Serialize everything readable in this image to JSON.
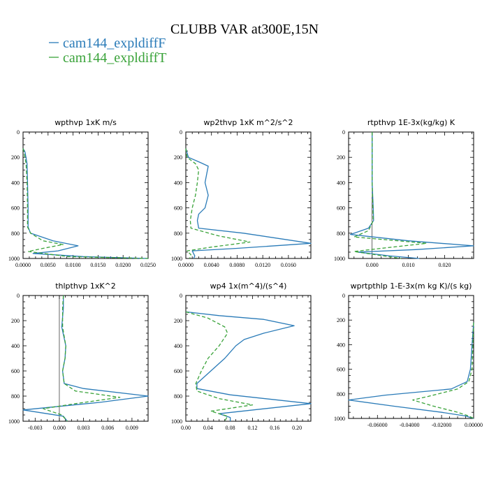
{
  "title": "CLUBB VAR at300E,15N",
  "series_styles": [
    {
      "name": "cam144_expldiffF",
      "color": "#2a7bb8",
      "dash": ""
    },
    {
      "name": "cam144_expldiffT",
      "color": "#3aa33a",
      "dash": "5,3"
    }
  ],
  "chart_data": [
    {
      "type": "line",
      "title": "wpthvp  1xK m/s",
      "xlim": [
        0,
        0.025
      ],
      "ylim": [
        1000,
        0
      ],
      "x_ticks": [
        "0.0000",
        "0.0050",
        "0.0100",
        "0.0150",
        "0.0200",
        "0.0250"
      ],
      "x_tick_values": [
        0,
        0.005,
        0.01,
        0.015,
        0.02,
        0.025
      ],
      "y_ticks": [
        "0",
        "200",
        "400",
        "600",
        "800",
        "1000"
      ],
      "y_tick_values": [
        0,
        200,
        400,
        600,
        800,
        1000
      ],
      "series": [
        {
          "name": "cam144_expldiffF",
          "points": [
            [
              0,
              130
            ],
            [
              0.0004,
              160
            ],
            [
              0.0008,
              250
            ],
            [
              0.0009,
              400
            ],
            [
              0.001,
              600
            ],
            [
              0.001,
              750
            ],
            [
              0.0015,
              800
            ],
            [
              0.006,
              860
            ],
            [
              0.011,
              900
            ],
            [
              0.007,
              940
            ],
            [
              0.002,
              960
            ],
            [
              0.012,
              985
            ],
            [
              0.025,
              1000
            ]
          ]
        },
        {
          "name": "cam144_expldiffT",
          "points": [
            [
              0,
              130
            ],
            [
              0.0002,
              160
            ],
            [
              0.0006,
              250
            ],
            [
              0.0008,
              400
            ],
            [
              0.0009,
              600
            ],
            [
              0.0009,
              750
            ],
            [
              0.0015,
              800
            ],
            [
              0.004,
              860
            ],
            [
              0.008,
              890
            ],
            [
              0.004,
              920
            ],
            [
              0.001,
              945
            ],
            [
              0.009,
              985
            ],
            [
              0.025,
              1000
            ]
          ]
        }
      ]
    },
    {
      "type": "line",
      "title": "wp2thvp  1xK m^2/s^2",
      "xlim": [
        0,
        0.0195
      ],
      "ylim": [
        1000,
        0
      ],
      "x_ticks": [
        "0.0000",
        "0.0040",
        "0.0080",
        "0.0120",
        "0.0160"
      ],
      "x_tick_values": [
        0,
        0.004,
        0.008,
        0.012,
        0.016
      ],
      "y_ticks": [
        "0",
        "200",
        "400",
        "600",
        "800",
        "1000"
      ],
      "y_tick_values": [
        0,
        200,
        400,
        600,
        800,
        1000
      ],
      "series": [
        {
          "name": "cam144_expldiffF",
          "points": [
            [
              0,
              130
            ],
            [
              0.0004,
              200
            ],
            [
              0.0022,
              240
            ],
            [
              0.0035,
              270
            ],
            [
              0.0033,
              320
            ],
            [
              0.003,
              400
            ],
            [
              0.0035,
              500
            ],
            [
              0.003,
              600
            ],
            [
              0.002,
              650
            ],
            [
              0.0018,
              700
            ],
            [
              0.002,
              760
            ],
            [
              0.009,
              800
            ],
            [
              0.0195,
              880
            ],
            [
              0.008,
              920
            ],
            [
              0.001,
              940
            ],
            [
              0.0014,
              980
            ],
            [
              0.0012,
              1000
            ]
          ]
        },
        {
          "name": "cam144_expldiffT",
          "points": [
            [
              0,
              130
            ],
            [
              0.0002,
              200
            ],
            [
              0.0015,
              250
            ],
            [
              0.002,
              300
            ],
            [
              0.0018,
              400
            ],
            [
              0.0015,
              500
            ],
            [
              0.001,
              600
            ],
            [
              0.0007,
              700
            ],
            [
              0.0008,
              760
            ],
            [
              0.005,
              820
            ],
            [
              0.01,
              870
            ],
            [
              0.004,
              910
            ],
            [
              0.0002,
              940
            ],
            [
              0.0008,
              970
            ],
            [
              0.0006,
              1000
            ]
          ]
        }
      ]
    },
    {
      "type": "line",
      "title": "rtpthvp  1E-3x(kg/kg) K",
      "xlim": [
        -0.0065,
        0.028
      ],
      "ylim": [
        1000,
        0
      ],
      "x_ticks": [
        "0.000",
        "0.010",
        "0.020"
      ],
      "x_tick_values": [
        0,
        0.01,
        0.02
      ],
      "y_ticks": [
        "0",
        "200",
        "400",
        "600",
        "800",
        "1000"
      ],
      "y_tick_values": [
        0,
        200,
        400,
        600,
        800,
        1000
      ],
      "series": [
        {
          "name": "cam144_expldiffF",
          "points": [
            [
              0,
              0
            ],
            [
              0,
              400
            ],
            [
              0.0003,
              600
            ],
            [
              0.0004,
              700
            ],
            [
              -0.001,
              760
            ],
            [
              -0.006,
              810
            ],
            [
              0.01,
              860
            ],
            [
              0.028,
              900
            ],
            [
              0.012,
              930
            ],
            [
              -0.004,
              950
            ],
            [
              0.005,
              980
            ],
            [
              0.013,
              1000
            ]
          ]
        },
        {
          "name": "cam144_expldiffT",
          "points": [
            [
              0,
              0
            ],
            [
              0,
              400
            ],
            [
              0.0002,
              600
            ],
            [
              0.0003,
              700
            ],
            [
              -0.001,
              780
            ],
            [
              -0.005,
              830
            ],
            [
              0.015,
              880
            ],
            [
              0.001,
              925
            ],
            [
              -0.005,
              945
            ],
            [
              0.002,
              975
            ],
            [
              0.008,
              1000
            ]
          ]
        }
      ]
    },
    {
      "type": "line",
      "title": "thlpthvp  1xK^2",
      "xlim": [
        -0.0045,
        0.011
      ],
      "ylim": [
        1000,
        0
      ],
      "x_ticks": [
        "-0.003",
        "0.000",
        "0.003",
        "0.006",
        "0.009"
      ],
      "x_tick_values": [
        -0.003,
        0,
        0.003,
        0.006,
        0.009
      ],
      "y_ticks": [
        "0",
        "200",
        "400",
        "600",
        "800",
        "1000"
      ],
      "y_tick_values": [
        0,
        200,
        400,
        600,
        800,
        1000
      ],
      "series": [
        {
          "name": "cam144_expldiffF",
          "points": [
            [
              0.0005,
              0
            ],
            [
              0.0005,
              100
            ],
            [
              0.0003,
              250
            ],
            [
              0.0008,
              400
            ],
            [
              0.0007,
              500
            ],
            [
              0.0004,
              600
            ],
            [
              0.0006,
              700
            ],
            [
              0.003,
              740
            ],
            [
              0.011,
              800
            ],
            [
              0.005,
              850
            ],
            [
              -0.0045,
              910
            ],
            [
              0.0005,
              960
            ],
            [
              0.001,
              1000
            ]
          ]
        },
        {
          "name": "cam144_expldiffT",
          "points": [
            [
              0.0005,
              0
            ],
            [
              0.0004,
              100
            ],
            [
              0.0004,
              250
            ],
            [
              0.0008,
              400
            ],
            [
              0.0007,
              500
            ],
            [
              0.0004,
              600
            ],
            [
              0.0006,
              700
            ],
            [
              0.002,
              760
            ],
            [
              0.0075,
              810
            ],
            [
              0.002,
              860
            ],
            [
              -0.002,
              900
            ],
            [
              0.0003,
              950
            ],
            [
              0.001,
              1000
            ]
          ]
        }
      ]
    },
    {
      "type": "line",
      "title": "wp4  1x(m^4)/(s^4)",
      "xlim": [
        0,
        0.225
      ],
      "ylim": [
        1000,
        0
      ],
      "x_ticks": [
        "0.00",
        "0.04",
        "0.08",
        "0.12",
        "0.16",
        "0.20"
      ],
      "x_tick_values": [
        0,
        0.04,
        0.08,
        0.12,
        0.16,
        0.2
      ],
      "y_ticks": [
        "0",
        "200",
        "400",
        "600",
        "800",
        "1000"
      ],
      "y_tick_values": [
        0,
        200,
        400,
        600,
        800,
        1000
      ],
      "series": [
        {
          "name": "cam144_expldiffF",
          "points": [
            [
              0.0,
              130
            ],
            [
              0.06,
              160
            ],
            [
              0.14,
              190
            ],
            [
              0.195,
              240
            ],
            [
              0.14,
              300
            ],
            [
              0.105,
              350
            ],
            [
              0.09,
              400
            ],
            [
              0.07,
              500
            ],
            [
              0.045,
              600
            ],
            [
              0.02,
              700
            ],
            [
              0.02,
              740
            ],
            [
              0.08,
              790
            ],
            [
              0.225,
              860
            ],
            [
              0.06,
              940
            ],
            [
              0.08,
              970
            ],
            [
              0.08,
              1000
            ]
          ]
        },
        {
          "name": "cam144_expldiffT",
          "points": [
            [
              0.0,
              130
            ],
            [
              0.04,
              180
            ],
            [
              0.07,
              250
            ],
            [
              0.075,
              300
            ],
            [
              0.06,
              400
            ],
            [
              0.04,
              500
            ],
            [
              0.028,
              600
            ],
            [
              0.018,
              700
            ],
            [
              0.02,
              760
            ],
            [
              0.06,
              820
            ],
            [
              0.12,
              870
            ],
            [
              0.045,
              920
            ],
            [
              0.075,
              960
            ],
            [
              0.07,
              1000
            ]
          ]
        }
      ]
    },
    {
      "type": "line",
      "title": "wprtpthlp  1-E-3x(m kg K)/(s kg)",
      "xlim": [
        -0.078,
        0.0
      ],
      "ylim": [
        1000,
        0
      ],
      "x_ticks": [
        "-0.06000",
        "-0.04000",
        "-0.02000",
        "0.00000"
      ],
      "x_tick_values": [
        -0.06,
        -0.04,
        -0.02,
        0
      ],
      "y_ticks": [
        "0",
        "200",
        "400",
        "600",
        "800",
        "1000"
      ],
      "y_tick_values": [
        0,
        200,
        400,
        600,
        800,
        1000
      ],
      "series": [
        {
          "name": "cam144_expldiffF",
          "points": [
            [
              0,
              220
            ],
            [
              -0.001,
              400
            ],
            [
              -0.002,
              600
            ],
            [
              -0.004,
              700
            ],
            [
              -0.014,
              760
            ],
            [
              -0.055,
              810
            ],
            [
              -0.078,
              850
            ],
            [
              -0.05,
              900
            ],
            [
              -0.02,
              950
            ],
            [
              -0.005,
              980
            ],
            [
              0,
              1000
            ]
          ]
        },
        {
          "name": "cam144_expldiffT",
          "points": [
            [
              0,
              220
            ],
            [
              -0.0005,
              400
            ],
            [
              -0.001,
              600
            ],
            [
              -0.003,
              700
            ],
            [
              -0.01,
              760
            ],
            [
              -0.028,
              820
            ],
            [
              -0.038,
              850
            ],
            [
              -0.025,
              900
            ],
            [
              -0.01,
              950
            ],
            [
              -0.003,
              980
            ],
            [
              0,
              1000
            ]
          ]
        }
      ]
    }
  ]
}
